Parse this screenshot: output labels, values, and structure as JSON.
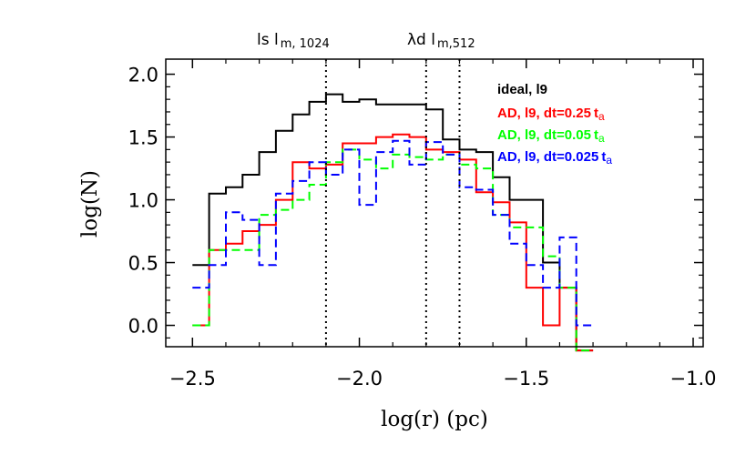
{
  "chart_data": {
    "type": "histogram-step",
    "xlabel": "log(r)  (pc)",
    "ylabel": "log(N)",
    "xlim": [
      -2.58,
      -0.97
    ],
    "ylim": [
      -0.17,
      2.12
    ],
    "x_ticks": [
      -2.5,
      -2.0,
      -1.5,
      -1.0
    ],
    "x_tick_labels": [
      "−2.5",
      "−2.0",
      "−1.5",
      "−1.0"
    ],
    "y_ticks": [
      0.0,
      0.5,
      1.0,
      1.5,
      2.0
    ],
    "y_tick_labels": [
      "0.0",
      "0.5",
      "1.0",
      "1.5",
      "2.0"
    ],
    "top_labels": [
      {
        "main": "ls  l",
        "sub": "m, 1024"
      },
      {
        "main": "λd  l",
        "sub": "m,512"
      }
    ],
    "vlines": [
      -2.1,
      -1.8,
      -1.7
    ],
    "bin_edges": [
      -2.5,
      -2.45,
      -2.4,
      -2.35,
      -2.3,
      -2.25,
      -2.2,
      -2.15,
      -2.1,
      -2.05,
      -2.0,
      -1.95,
      -1.9,
      -1.85,
      -1.8,
      -1.75,
      -1.7,
      -1.65,
      -1.6,
      -1.55,
      -1.5,
      -1.45,
      -1.4,
      -1.35,
      -1.3
    ],
    "series": [
      {
        "name": "ideal, l9",
        "color": "#000000",
        "dash": "solid",
        "values": [
          0.48,
          1.05,
          1.1,
          1.2,
          1.38,
          1.55,
          1.68,
          1.78,
          1.84,
          1.78,
          1.8,
          1.76,
          1.76,
          1.76,
          1.72,
          1.48,
          1.4,
          1.38,
          1.18,
          1.0,
          1.0,
          0.5,
          0.3,
          -0.2
        ]
      },
      {
        "name": "AD, l9, dt=0.25",
        "sub": "a",
        "color": "#ff0000",
        "dash": "solid",
        "values": [
          0.0,
          0.6,
          0.65,
          0.75,
          0.8,
          1.0,
          1.3,
          1.25,
          1.28,
          1.45,
          1.45,
          1.5,
          1.52,
          1.5,
          1.4,
          1.38,
          1.32,
          1.06,
          0.98,
          0.82,
          0.3,
          0.0,
          0.3,
          -0.2
        ]
      },
      {
        "name": "AD, l9, dt=0.05",
        "sub": "a",
        "color": "#00ff00",
        "dash": "dashed",
        "values": [
          0.0,
          0.6,
          0.6,
          0.6,
          0.88,
          0.92,
          1.0,
          1.12,
          1.3,
          1.4,
          1.32,
          1.25,
          1.36,
          1.34,
          1.32,
          1.36,
          1.28,
          1.25,
          0.88,
          0.78,
          0.78,
          0.55,
          0.3,
          -0.2
        ]
      },
      {
        "name": "AD, l9, dt=0.025",
        "sub": "a",
        "color": "#0000ff",
        "dash": "dashed",
        "values": [
          0.3,
          0.48,
          0.9,
          0.84,
          0.48,
          1.05,
          1.15,
          1.3,
          1.2,
          1.4,
          0.96,
          1.38,
          1.47,
          1.28,
          1.46,
          1.36,
          1.1,
          1.08,
          0.88,
          0.65,
          0.48,
          0.3,
          0.7,
          0.0
        ]
      }
    ]
  }
}
